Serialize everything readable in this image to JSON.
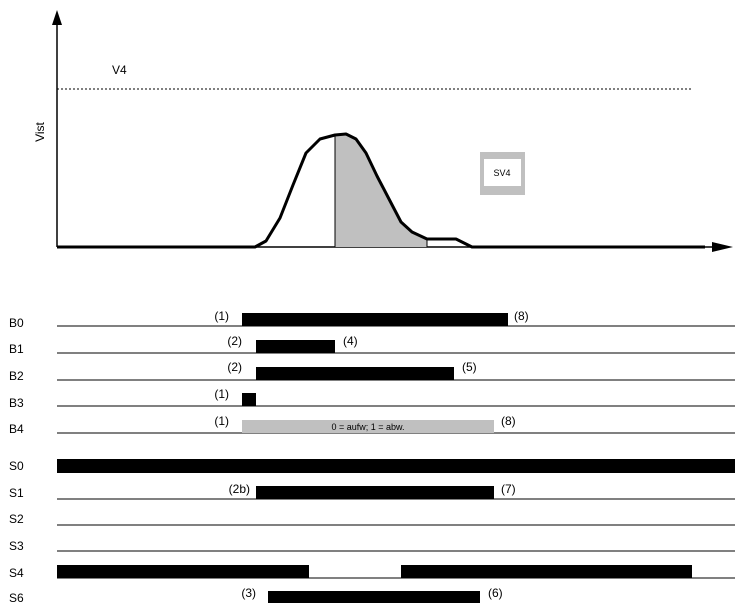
{
  "plot": {
    "y_axis_label": "Vist",
    "threshold_label": "V4",
    "box_label": "SV4"
  },
  "tracks": [
    {
      "name": "B0",
      "bars": [
        {
          "start": "(1)",
          "end": "(8)"
        }
      ]
    },
    {
      "name": "B1",
      "bars": [
        {
          "start": "(2)",
          "end": "(4)"
        }
      ]
    },
    {
      "name": "B2",
      "bars": [
        {
          "start": "(2)",
          "end": "(5)"
        }
      ]
    },
    {
      "name": "B3",
      "bars": [
        {
          "start": "(1)",
          "end": ""
        }
      ]
    },
    {
      "name": "B4",
      "bars": [
        {
          "start": "(1)",
          "end": "(8)",
          "text": "0 = aufw;  1 = abw."
        }
      ]
    },
    {
      "name": "S0",
      "bars": [
        {
          "start": "",
          "end": ""
        }
      ]
    },
    {
      "name": "S1",
      "bars": [
        {
          "start": "(2b)",
          "end": "(7)"
        }
      ]
    },
    {
      "name": "S2",
      "bars": []
    },
    {
      "name": "S3",
      "bars": []
    },
    {
      "name": "S4",
      "bars": [
        {
          "start": "",
          "end": ""
        },
        {
          "start": "",
          "end": ""
        }
      ]
    },
    {
      "name": "S6",
      "bars": [
        {
          "start": "(3)",
          "end": "(6)"
        }
      ]
    }
  ]
}
